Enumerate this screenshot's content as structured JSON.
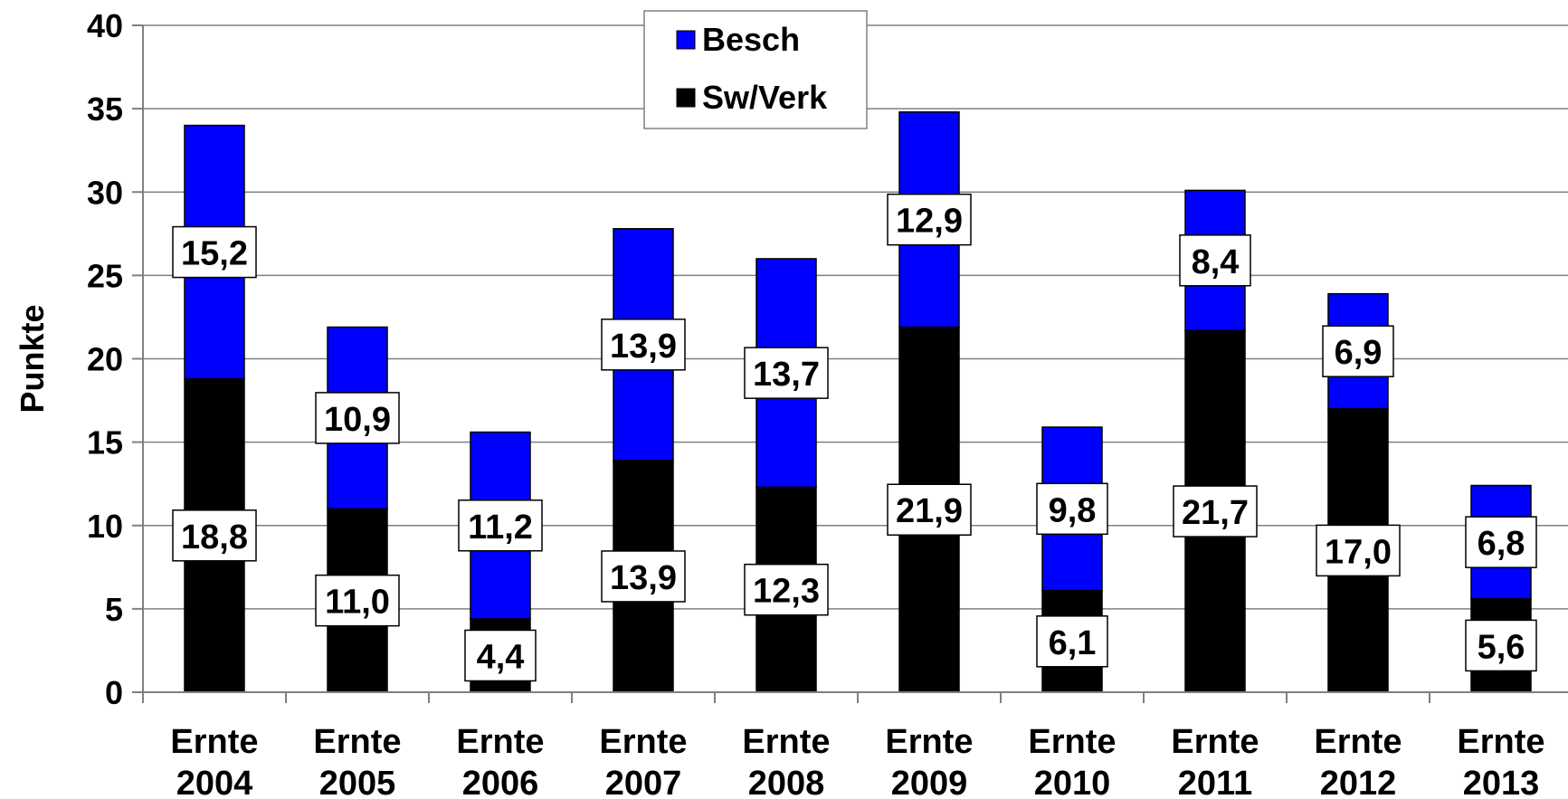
{
  "chart_data": {
    "type": "bar",
    "stacked": true,
    "ylabel": "Punkte",
    "ylim": [
      0,
      40
    ],
    "yticks": [
      "0",
      "5",
      "10",
      "15",
      "20",
      "25",
      "30",
      "35",
      "40"
    ],
    "grid": true,
    "legend_position": "top-center",
    "categories": [
      [
        "Ernte",
        "2004"
      ],
      [
        "Ernte",
        "2005"
      ],
      [
        "Ernte",
        "2006"
      ],
      [
        "Ernte",
        "2007"
      ],
      [
        "Ernte",
        "2008"
      ],
      [
        "Ernte",
        "2009"
      ],
      [
        "Ernte",
        "2010"
      ],
      [
        "Ernte",
        "2011"
      ],
      [
        "Ernte",
        "2012"
      ],
      [
        "Ernte",
        "2013"
      ]
    ],
    "series": [
      {
        "name": "Sw/Verk",
        "color": "#000000",
        "values": [
          18.8,
          11.0,
          4.4,
          13.9,
          12.3,
          21.9,
          6.1,
          21.7,
          17.0,
          5.6
        ],
        "labels": [
          "18,8",
          "11,0",
          "4,4",
          "13,9",
          "12,3",
          "21,9",
          "6,1",
          "21,7",
          "17,0",
          "5,6"
        ]
      },
      {
        "name": "Besch",
        "color": "#0000ff",
        "values": [
          15.2,
          10.9,
          11.2,
          13.9,
          13.7,
          12.9,
          9.8,
          8.4,
          6.9,
          6.8
        ],
        "labels": [
          "15,2",
          "10,9",
          "11,2",
          "13,9",
          "13,7",
          "12,9",
          "9,8",
          "8,4",
          "6,9",
          "6,8"
        ]
      }
    ],
    "legend": [
      "Besch",
      "Sw/Verk"
    ]
  }
}
